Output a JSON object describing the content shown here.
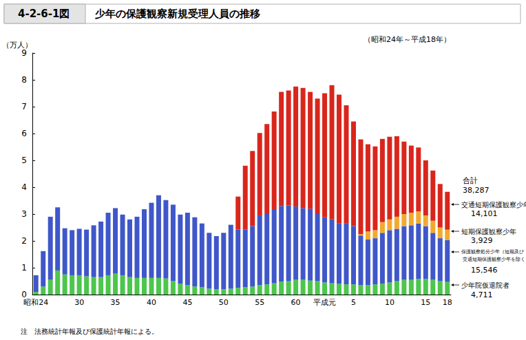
{
  "chart_data": {
    "type": "bar",
    "stacked": true,
    "figure_number": "4-2-6-1図",
    "title": "少年の保護観察新規受理人員の推移",
    "subtitle": "（昭和24年～平成18年）",
    "y_label": "（万人）",
    "note": "注　法務統計年報及び保護統計年報による。",
    "categories": [
      "昭和24",
      null,
      null,
      null,
      null,
      null,
      "30",
      null,
      null,
      null,
      null,
      "35",
      null,
      null,
      null,
      null,
      "40",
      null,
      null,
      null,
      null,
      "45",
      null,
      null,
      null,
      null,
      "50",
      null,
      null,
      null,
      null,
      "55",
      null,
      null,
      null,
      null,
      "60",
      null,
      null,
      null,
      "平成元",
      null,
      null,
      null,
      "5",
      null,
      null,
      null,
      null,
      "10",
      null,
      null,
      null,
      null,
      "15",
      null,
      null,
      "18"
    ],
    "ylim": [
      0,
      9
    ],
    "yticks": [
      0,
      1,
      2,
      3,
      4,
      5,
      6,
      7,
      8,
      9
    ],
    "grid": false,
    "data_labels": false,
    "total": {
      "label": "合計",
      "value_label": "38,287"
    },
    "series": [
      {
        "name": "少年院仮退院者",
        "color": "#4cc64c",
        "value_label": "4,711",
        "values": [
          0.1,
          0.3,
          0.55,
          0.9,
          0.75,
          0.72,
          0.72,
          0.68,
          0.65,
          0.65,
          0.72,
          0.78,
          0.72,
          0.65,
          0.62,
          0.62,
          0.62,
          0.62,
          0.6,
          0.5,
          0.4,
          0.35,
          0.3,
          0.28,
          0.22,
          0.2,
          0.2,
          0.22,
          0.25,
          0.28,
          0.3,
          0.35,
          0.38,
          0.42,
          0.48,
          0.5,
          0.55,
          0.55,
          0.52,
          0.5,
          0.45,
          0.42,
          0.4,
          0.38,
          0.38,
          0.35,
          0.35,
          0.38,
          0.4,
          0.45,
          0.5,
          0.55,
          0.55,
          0.58,
          0.58,
          0.55,
          0.5,
          0.4711
        ]
      },
      {
        "name": "保護観察処分少年",
        "note_lines": [
          "（短期及び",
          "交通短期保護観察少年を除く）"
        ],
        "color": "#3f57c9",
        "value_label": "15,546",
        "values": [
          0.62,
          1.32,
          2.35,
          2.35,
          1.72,
          1.68,
          1.73,
          1.74,
          1.93,
          2.07,
          2.33,
          2.44,
          2.26,
          2.15,
          2.28,
          2.56,
          2.8,
          3.08,
          2.92,
          2.85,
          2.58,
          2.7,
          2.58,
          2.37,
          2.08,
          1.98,
          2.1,
          2.38,
          2.17,
          2.14,
          2.25,
          2.6,
          2.62,
          2.76,
          2.82,
          2.82,
          2.73,
          2.67,
          2.68,
          2.5,
          2.43,
          2.38,
          2.25,
          2.27,
          2.17,
          1.85,
          1.7,
          1.72,
          1.9,
          1.95,
          1.95,
          2.0,
          2.03,
          2.07,
          1.97,
          1.75,
          1.6,
          1.5546
        ]
      },
      {
        "name": "短期保護観察少年",
        "color": "#f2aa2e",
        "value_label": "3,929",
        "values": [
          null,
          null,
          null,
          null,
          null,
          null,
          null,
          null,
          null,
          null,
          null,
          null,
          null,
          null,
          null,
          null,
          null,
          null,
          null,
          null,
          null,
          null,
          null,
          null,
          null,
          null,
          null,
          null,
          null,
          null,
          null,
          null,
          null,
          null,
          null,
          null,
          null,
          null,
          null,
          null,
          null,
          null,
          null,
          null,
          null,
          0.05,
          0.3,
          0.3,
          0.4,
          0.4,
          0.45,
          0.45,
          0.47,
          0.45,
          0.4,
          0.45,
          0.4,
          0.3929
        ]
      },
      {
        "name": "交通短期保護観察少年",
        "color": "#d9261c",
        "value_label": "14,101",
        "values": [
          null,
          null,
          null,
          null,
          null,
          null,
          null,
          null,
          null,
          null,
          null,
          null,
          null,
          null,
          null,
          null,
          null,
          null,
          null,
          null,
          null,
          null,
          null,
          null,
          null,
          null,
          null,
          null,
          1.23,
          2.38,
          2.8,
          3.07,
          3.35,
          3.64,
          4.25,
          4.28,
          4.47,
          4.48,
          4.35,
          4.3,
          4.62,
          5.0,
          4.8,
          4.4,
          3.9,
          3.53,
          3.25,
          3.12,
          3.1,
          3.08,
          3.0,
          2.7,
          2.5,
          2.38,
          2.05,
          1.87,
          1.62,
          1.4101
        ]
      }
    ]
  }
}
